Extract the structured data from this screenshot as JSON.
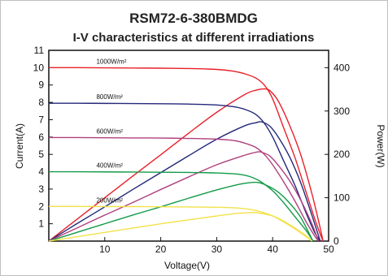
{
  "chart_data": {
    "type": "line",
    "title": "RSM72-6-380BMDG",
    "subtitle": "I-V characteristics at different irradiations",
    "xlabel": "Voltage(V)",
    "ylabel": "Current(A)",
    "y2label": "Power(W)",
    "xlim": [
      0,
      50
    ],
    "ylim": [
      0,
      11
    ],
    "y2lim": [
      0,
      440
    ],
    "xticks": [
      "10",
      "20",
      "30",
      "40",
      "50"
    ],
    "yticks": [
      "1",
      "2",
      "3",
      "4",
      "5",
      "6",
      "7",
      "8",
      "9",
      "10",
      "11"
    ],
    "y2ticks": [
      "0",
      "100",
      "200",
      "300",
      "400"
    ],
    "grid": false,
    "series": [
      {
        "name": "1000W/m²",
        "color": "#e8202a",
        "iv": {
          "x": [
            0,
            5,
            10,
            15,
            20,
            25,
            30,
            33,
            35,
            37,
            38.5,
            40,
            42,
            44,
            46,
            47.5,
            48.5,
            49
          ],
          "y": [
            10.0,
            10.0,
            9.99,
            9.98,
            9.97,
            9.95,
            9.9,
            9.8,
            9.65,
            9.4,
            9.0,
            8.2,
            6.5,
            4.8,
            2.8,
            1.3,
            0.4,
            0
          ]
        },
        "pv": {
          "x": [
            0,
            5,
            10,
            15,
            20,
            25,
            30,
            35,
            37,
            38.5,
            39.5,
            41,
            43,
            45,
            47,
            48.5,
            49
          ],
          "y": [
            0,
            50,
            100,
            150,
            199,
            249,
            297,
            338,
            348,
            351,
            347,
            323,
            268,
            200,
            110,
            30,
            0
          ]
        }
      },
      {
        "name": "800W/m²",
        "color": "#23287a",
        "iv": {
          "x": [
            0,
            5,
            10,
            15,
            20,
            25,
            30,
            33,
            35,
            37,
            38.5,
            40,
            42,
            44,
            46,
            47.5,
            48.5
          ],
          "y": [
            7.95,
            7.95,
            7.94,
            7.93,
            7.92,
            7.9,
            7.85,
            7.75,
            7.6,
            7.3,
            6.8,
            6.0,
            4.6,
            3.2,
            1.6,
            0.5,
            0
          ]
        },
        "pv": {
          "x": [
            0,
            5,
            10,
            15,
            20,
            25,
            30,
            35,
            37,
            38,
            39.5,
            41,
            43,
            45,
            47,
            48.5
          ],
          "y": [
            0,
            40,
            79,
            119,
            158,
            197,
            235,
            266,
            273,
            275,
            265,
            240,
            195,
            135,
            60,
            0
          ]
        }
      },
      {
        "name": "600W/m²",
        "color": "#b0407f",
        "iv": {
          "x": [
            0,
            5,
            10,
            15,
            20,
            25,
            30,
            33,
            35,
            37,
            38.5,
            40,
            42,
            44,
            46,
            47.5,
            48.2
          ],
          "y": [
            5.97,
            5.97,
            5.96,
            5.95,
            5.94,
            5.92,
            5.88,
            5.8,
            5.65,
            5.4,
            5.0,
            4.4,
            3.4,
            2.3,
            1.1,
            0.3,
            0
          ]
        },
        "pv": {
          "x": [
            0,
            5,
            10,
            15,
            20,
            25,
            30,
            35,
            37,
            38,
            39.5,
            41,
            43,
            45,
            47,
            48.2
          ],
          "y": [
            0,
            30,
            60,
            89,
            119,
            148,
            176,
            198,
            205,
            205,
            196,
            175,
            140,
            95,
            40,
            0
          ]
        }
      },
      {
        "name": "400W/m²",
        "color": "#139a48",
        "iv": {
          "x": [
            0,
            5,
            10,
            15,
            20,
            25,
            30,
            33,
            35,
            36.5,
            38,
            40,
            42,
            44,
            46,
            47.2
          ],
          "y": [
            4.0,
            4.0,
            3.99,
            3.98,
            3.97,
            3.96,
            3.93,
            3.88,
            3.8,
            3.65,
            3.4,
            2.9,
            2.2,
            1.4,
            0.6,
            0
          ]
        },
        "pv": {
          "x": [
            0,
            5,
            10,
            15,
            20,
            25,
            30,
            34,
            36,
            37.5,
            39,
            41,
            43,
            45,
            47.2
          ],
          "y": [
            0,
            20,
            40,
            60,
            79,
            99,
            118,
            131,
            135,
            135,
            128,
            113,
            88,
            55,
            0
          ]
        }
      },
      {
        "name": "200W/m²",
        "color": "#f2e24a",
        "iv": {
          "x": [
            0,
            5,
            10,
            15,
            20,
            25,
            30,
            33,
            35,
            36.5,
            38,
            40,
            42,
            44,
            46,
            47
          ],
          "y": [
            2.0,
            2.0,
            1.99,
            1.99,
            1.98,
            1.97,
            1.95,
            1.92,
            1.87,
            1.8,
            1.68,
            1.45,
            1.1,
            0.7,
            0.25,
            0
          ]
        },
        "pv": {
          "x": [
            0,
            5,
            10,
            15,
            20,
            25,
            30,
            33,
            35,
            36.5,
            38,
            40,
            42,
            44,
            46,
            47
          ],
          "y": [
            0,
            10,
            20,
            30,
            40,
            49,
            58,
            63,
            65,
            66,
            64,
            58,
            46,
            30,
            12,
            0
          ]
        }
      }
    ]
  }
}
